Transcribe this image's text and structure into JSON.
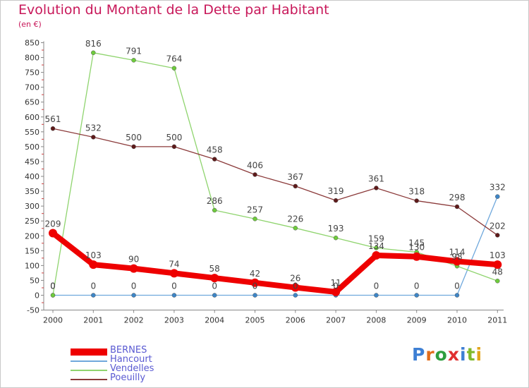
{
  "title": "Evolution du Montant de la Dette par Habitant",
  "unit": "(en €)",
  "logo": {
    "text": "Proxiti",
    "letter_colors": [
      "#3d7fd4",
      "#e26d1b",
      "#2f9e3f",
      "#e03030",
      "#3d7fd4",
      "#7fba2b",
      "#e2a51b"
    ]
  },
  "chart_data": {
    "type": "line",
    "title": "Evolution du Montant de la Dette par Habitant",
    "subtitle": "(en €)",
    "x": [
      "2000",
      "2001",
      "2002",
      "2003",
      "2004",
      "2005",
      "2006",
      "2007",
      "2008",
      "2009",
      "2010",
      "2011"
    ],
    "ylim": [
      -50,
      850
    ],
    "yticks": [
      -50,
      0,
      50,
      100,
      150,
      200,
      250,
      300,
      350,
      400,
      450,
      500,
      550,
      600,
      650,
      700,
      750,
      800,
      850
    ],
    "grid": false,
    "legend_position": "bottom-left",
    "series": [
      {
        "name": "BERNES",
        "color": "#ee0000",
        "line_width": 8,
        "marker": "round-cap",
        "values": [
          209,
          103,
          90,
          74,
          58,
          42,
          26,
          11,
          134,
          130,
          114,
          103
        ]
      },
      {
        "name": "Hancourt",
        "color": "#6fa8dc",
        "line_width": 1.3,
        "marker_color": "#3d85c6",
        "values": [
          0,
          0,
          0,
          0,
          0,
          0,
          0,
          0,
          0,
          0,
          0,
          332
        ]
      },
      {
        "name": "Vendelles",
        "color": "#8fd46e",
        "line_width": 1.3,
        "marker_color": "#6ecb3c",
        "values": [
          0,
          816,
          791,
          764,
          286,
          257,
          226,
          193,
          159,
          145,
          98,
          48
        ]
      },
      {
        "name": "Poeuilly",
        "color": "#8b3a3a",
        "line_width": 1.3,
        "marker_color": "#5e1a1a",
        "values": [
          561,
          532,
          500,
          500,
          458,
          406,
          367,
          319,
          361,
          318,
          298,
          202
        ]
      }
    ]
  }
}
